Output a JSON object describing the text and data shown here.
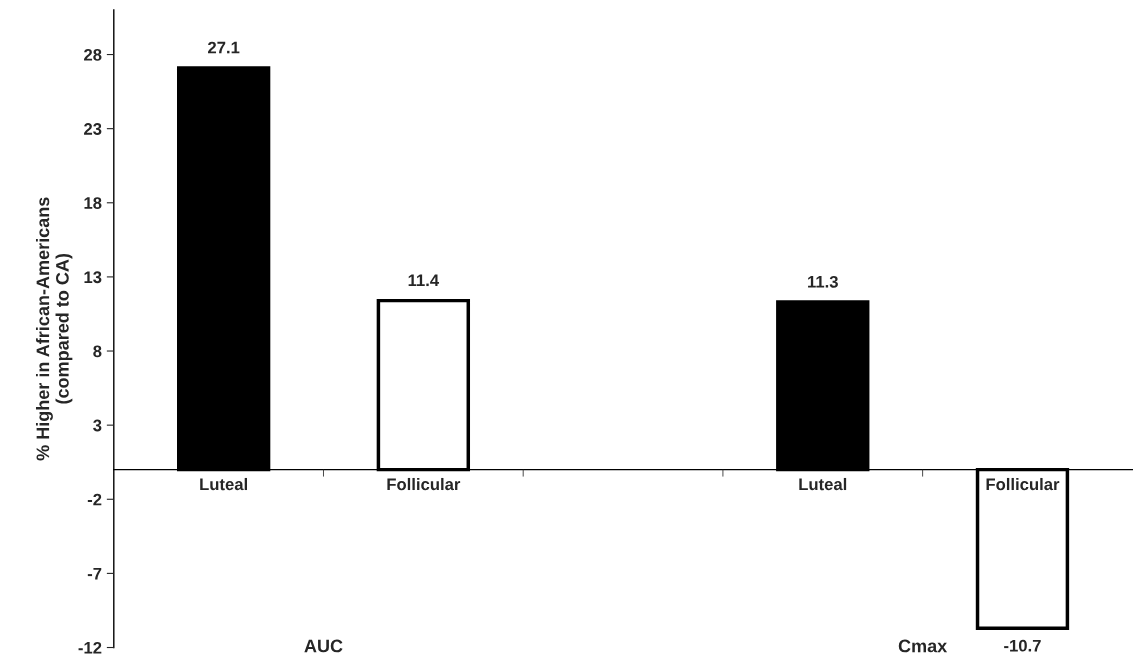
{
  "chart_data": {
    "type": "bar",
    "ylabel": "% Higher in African-Americans\n(compared to CA)",
    "categories": [
      "Luteal",
      "Follicular",
      null,
      "Luteal",
      "Follicular"
    ],
    "values": [
      27.1,
      11.4,
      null,
      11.3,
      -10.7
    ],
    "colors": [
      "#000000",
      "#ffffff",
      "#ffffff",
      "#000000",
      "#ffffff"
    ],
    "ylim": [
      -12,
      31
    ],
    "yticks": [
      -12,
      -7,
      -2,
      3,
      8,
      13,
      18,
      23,
      28
    ],
    "data_labels": true,
    "grid": false,
    "legend": false,
    "annotations": [
      "AUC",
      "Cmax"
    ]
  }
}
